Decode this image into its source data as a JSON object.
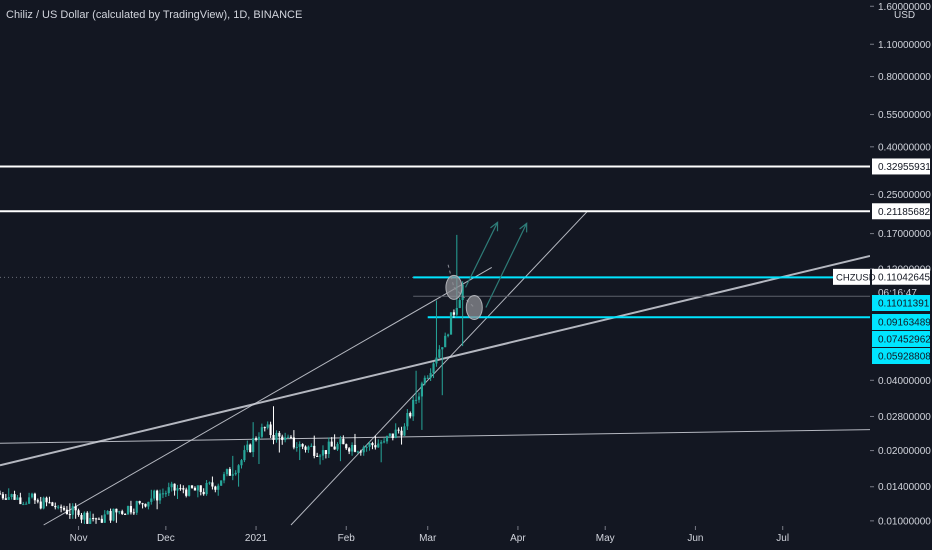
{
  "header": {
    "title": "Chiliz / US Dollar (calculated by TradingView), 1D, BINANCE"
  },
  "chart_data": {
    "type": "candlestick",
    "symbol": "CHZUSD",
    "y_unit": "USD",
    "y_scale": "log",
    "y_range": [
      0.0096,
      1.62
    ],
    "y_ticks": [
      {
        "value": 1.6,
        "label": "1.60000000"
      },
      {
        "value": 1.1,
        "label": "1.10000000"
      },
      {
        "value": 0.8,
        "label": "0.80000000"
      },
      {
        "value": 0.55,
        "label": "0.55000000"
      },
      {
        "value": 0.4,
        "label": "0.40000000"
      },
      {
        "value": 0.25,
        "label": "0.25000000"
      },
      {
        "value": 0.17,
        "label": "0.17000000"
      },
      {
        "value": 0.12,
        "label": "0.12000000"
      },
      {
        "value": 0.04,
        "label": "0.04000000"
      },
      {
        "value": 0.028,
        "label": "0.02800000"
      },
      {
        "value": 0.02,
        "label": "0.02000000"
      },
      {
        "value": 0.014,
        "label": "0.01400000"
      },
      {
        "value": 0.01,
        "label": "0.01000000"
      }
    ],
    "x_range": [
      "2020-10-05",
      "2021-07-31"
    ],
    "x_ticks": [
      {
        "date": "2020-11-01",
        "label": "Nov"
      },
      {
        "date": "2020-12-01",
        "label": "Dec"
      },
      {
        "date": "2021-01-01",
        "label": "2021"
      },
      {
        "date": "2021-02-01",
        "label": "Feb"
      },
      {
        "date": "2021-03-01",
        "label": "Mar"
      },
      {
        "date": "2021-04-01",
        "label": "Apr"
      },
      {
        "date": "2021-05-01",
        "label": "May"
      },
      {
        "date": "2021-06-01",
        "label": "Jun"
      },
      {
        "date": "2021-07-01",
        "label": "Jul"
      }
    ],
    "price_tags": [
      {
        "value": 0.32955931,
        "label": "0.32955931",
        "style": "white"
      },
      {
        "value": 0.21185682,
        "label": "0.21185682",
        "style": "white"
      },
      {
        "value": 0.11042645,
        "label": "0.11042645",
        "style": "current",
        "symbol": "CHZUSD",
        "countdown": "06:16:47"
      },
      {
        "value": 0.11011391,
        "label": "0.11011391",
        "style": "cyan"
      },
      {
        "value": 0.09163489,
        "label": "0.09163489",
        "style": "cyan"
      },
      {
        "value": 0.07452962,
        "label": "0.07452962",
        "style": "cyan"
      },
      {
        "value": 0.05928808,
        "label": "0.05928808",
        "style": "cyan"
      }
    ],
    "horizontal_lines": [
      {
        "value": 0.32955931,
        "color": "#ffffff",
        "from": "2020-10-05"
      },
      {
        "value": 0.21185682,
        "color": "#ffffff",
        "from": "2020-10-05"
      },
      {
        "value": 0.11042645,
        "color": "#00e5ff",
        "from": "2021-02-24"
      },
      {
        "value": 0.07452962,
        "color": "#00e5ff",
        "from": "2021-03-01"
      }
    ],
    "trend_lines": [
      {
        "p1": {
          "date": "2020-10-05",
          "value": 0.0215
        },
        "p2": {
          "date": "2021-07-31",
          "value": 0.0246
        },
        "color": "#d1d4dc"
      },
      {
        "p1": {
          "date": "2020-10-05",
          "value": 0.0173
        },
        "p2": {
          "date": "2021-07-31",
          "value": 0.1364
        },
        "color": "#d1d4dc"
      },
      {
        "p1": {
          "date": "2020-10-20",
          "value": 0.0096
        },
        "p2": {
          "date": "2021-03-23",
          "value": 0.1217
        },
        "color": "#d1d4dc"
      },
      {
        "p1": {
          "date": "2021-01-13",
          "value": 0.0096
        },
        "p2": {
          "date": "2021-04-25",
          "value": 0.2125
        },
        "color": "#d1d4dc"
      }
    ],
    "projection_arrows": [
      {
        "from": {
          "date": "2021-03-14",
          "value": 0.1
        },
        "to": {
          "date": "2021-03-25",
          "value": 0.19
        }
      },
      {
        "from": {
          "date": "2021-03-21",
          "value": 0.082
        },
        "to": {
          "date": "2021-04-04",
          "value": 0.188
        }
      }
    ],
    "markers": [
      {
        "date": "2021-03-10",
        "value": 0.1,
        "shape": "ellipse"
      },
      {
        "date": "2021-03-17",
        "value": 0.082,
        "shape": "ellipse"
      }
    ],
    "colors": {
      "background": "#131722",
      "up": "#26a69a",
      "down": "#ffffff",
      "cyan": "#00e5ff",
      "white_line": "#ffffff",
      "trend": "#d1d4dc",
      "arrow": "#2e7c78"
    },
    "series_weekly_ohlc": [
      {
        "date": "2020-10-05",
        "open": 0.0131,
        "high": 0.0138,
        "low": 0.0123,
        "close": 0.0126
      },
      {
        "date": "2020-10-12",
        "open": 0.0126,
        "high": 0.0132,
        "low": 0.0118,
        "close": 0.0121
      },
      {
        "date": "2020-10-19",
        "open": 0.0121,
        "high": 0.0127,
        "low": 0.0112,
        "close": 0.0115
      },
      {
        "date": "2020-10-26",
        "open": 0.0115,
        "high": 0.0119,
        "low": 0.0102,
        "close": 0.0106
      },
      {
        "date": "2020-11-02",
        "open": 0.0106,
        "high": 0.011,
        "low": 0.0097,
        "close": 0.0102
      },
      {
        "date": "2020-11-09",
        "open": 0.0102,
        "high": 0.0113,
        "low": 0.0098,
        "close": 0.011
      },
      {
        "date": "2020-11-16",
        "open": 0.011,
        "high": 0.0122,
        "low": 0.0106,
        "close": 0.0119
      },
      {
        "date": "2020-11-23",
        "open": 0.0119,
        "high": 0.0136,
        "low": 0.0112,
        "close": 0.0131
      },
      {
        "date": "2020-11-30",
        "open": 0.0131,
        "high": 0.0147,
        "low": 0.0124,
        "close": 0.0138
      },
      {
        "date": "2020-12-07",
        "open": 0.0138,
        "high": 0.0142,
        "low": 0.0126,
        "close": 0.0133
      },
      {
        "date": "2020-12-14",
        "open": 0.0133,
        "high": 0.0155,
        "low": 0.0128,
        "close": 0.0149
      },
      {
        "date": "2020-12-21",
        "open": 0.0149,
        "high": 0.019,
        "low": 0.014,
        "close": 0.0182
      },
      {
        "date": "2020-12-28",
        "open": 0.0182,
        "high": 0.0265,
        "low": 0.0175,
        "close": 0.0252
      },
      {
        "date": "2021-01-04",
        "open": 0.0252,
        "high": 0.031,
        "low": 0.0196,
        "close": 0.0222
      },
      {
        "date": "2021-01-11",
        "open": 0.0222,
        "high": 0.0245,
        "low": 0.0182,
        "close": 0.0208
      },
      {
        "date": "2021-01-18",
        "open": 0.0208,
        "high": 0.0232,
        "low": 0.0174,
        "close": 0.0201
      },
      {
        "date": "2021-01-25",
        "open": 0.0201,
        "high": 0.0235,
        "low": 0.018,
        "close": 0.0213
      },
      {
        "date": "2021-02-01",
        "open": 0.0213,
        "high": 0.0236,
        "low": 0.019,
        "close": 0.0207
      },
      {
        "date": "2021-02-08",
        "open": 0.0207,
        "high": 0.0232,
        "low": 0.0178,
        "close": 0.0219
      },
      {
        "date": "2021-02-15",
        "open": 0.0219,
        "high": 0.0262,
        "low": 0.0212,
        "close": 0.0254
      },
      {
        "date": "2021-02-22",
        "open": 0.0254,
        "high": 0.044,
        "low": 0.0245,
        "close": 0.041
      },
      {
        "date": "2021-03-01",
        "open": 0.041,
        "high": 0.088,
        "low": 0.0345,
        "close": 0.062
      },
      {
        "date": "2021-03-08",
        "open": 0.062,
        "high": 0.168,
        "low": 0.056,
        "close": 0.1104
      }
    ]
  }
}
